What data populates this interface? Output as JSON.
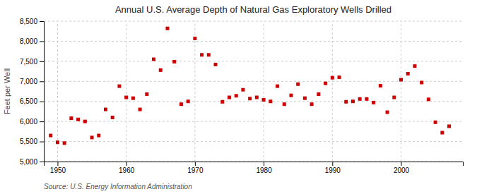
{
  "chart_data": {
    "type": "scatter",
    "title": "Annual U.S. Average Depth of Natural Gas Exploratory Wells Drilled",
    "ylabel": "Feet per Well",
    "source": "Source: U.S. Energy Information Administration",
    "color": "#cc0000",
    "marker": "square",
    "grid": true,
    "x": [
      1949,
      1950,
      1951,
      1952,
      1953,
      1954,
      1955,
      1956,
      1957,
      1958,
      1959,
      1960,
      1961,
      1962,
      1963,
      1964,
      1965,
      1966,
      1967,
      1968,
      1969,
      1970,
      1971,
      1972,
      1973,
      1974,
      1975,
      1976,
      1977,
      1978,
      1979,
      1980,
      1981,
      1982,
      1983,
      1984,
      1985,
      1986,
      1987,
      1988,
      1989,
      1990,
      1991,
      1992,
      1993,
      1994,
      1995,
      1996,
      1997,
      1998,
      1999,
      2000,
      2001,
      2002,
      2003,
      2004,
      2005,
      2006,
      2007
    ],
    "values": [
      5650,
      5480,
      5460,
      6080,
      6050,
      6000,
      5600,
      5650,
      6300,
      6100,
      6880,
      6600,
      6580,
      6300,
      6680,
      7550,
      7280,
      8320,
      7490,
      6430,
      6500,
      8070,
      7660,
      7660,
      7420,
      6490,
      6600,
      6640,
      6790,
      6570,
      6600,
      6540,
      6500,
      6880,
      6430,
      6650,
      6930,
      6580,
      6430,
      6680,
      6950,
      7090,
      7100,
      6490,
      6500,
      6560,
      6560,
      6470,
      6890,
      6230,
      6600,
      7040,
      7190,
      7380,
      6970,
      6550,
      5980,
      5720,
      5880
    ],
    "xlim": [
      1948,
      2009
    ],
    "xticks": [
      1950,
      1960,
      1970,
      1980,
      1990,
      2000
    ],
    "ylim": [
      5000,
      8500
    ],
    "yticks": [
      {
        "value": 5000,
        "label": "5,000"
      },
      {
        "value": 5500,
        "label": "5,500"
      },
      {
        "value": 6000,
        "label": "6,000"
      },
      {
        "value": 6500,
        "label": "6,500"
      },
      {
        "value": 7000,
        "label": "7,000"
      },
      {
        "value": 7500,
        "label": "7,500"
      },
      {
        "value": 8000,
        "label": "8,000"
      },
      {
        "value": 8500,
        "label": "8,500"
      }
    ]
  }
}
